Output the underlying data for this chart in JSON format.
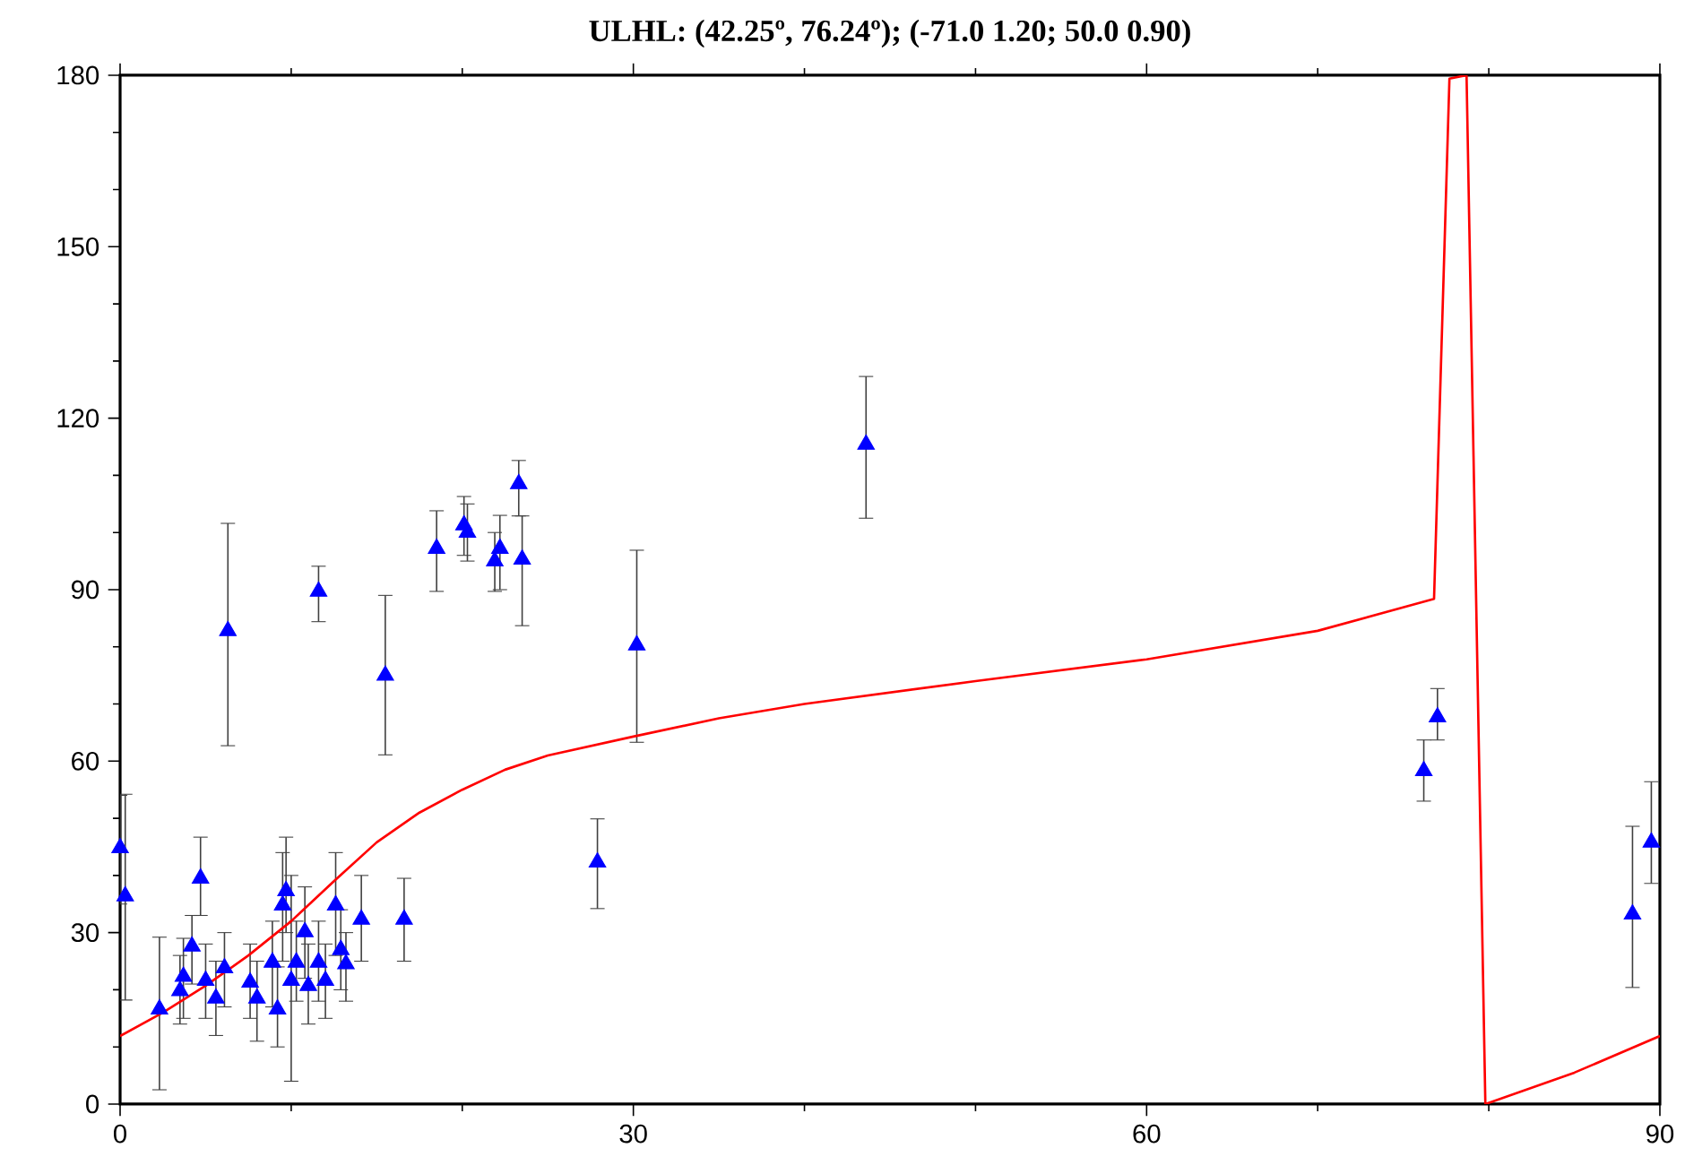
{
  "chart_data": {
    "type": "scatter",
    "title": "**ULHL: (42.25º, 76.24º);  (-71.0 1.20; 50.0 0.90)**",
    "xlim": [
      0,
      90
    ],
    "ylim": [
      0,
      180
    ],
    "xticks": [
      0,
      30,
      60,
      90
    ],
    "yticks": [
      0,
      30,
      60,
      90,
      120,
      150,
      180
    ],
    "grid": false,
    "marker": "triangle",
    "series": [
      {
        "type": "scatter",
        "color": "#0000ff",
        "x": [
          0,
          0.3,
          2.3,
          3.5,
          3.7,
          4.2,
          4.7,
          5,
          5.6,
          6.1,
          6.3,
          7.6,
          8,
          8.9,
          9.2,
          9.5,
          9.7,
          10,
          10.3,
          10.8,
          11,
          11.6,
          11.6,
          12,
          12.6,
          12.9,
          13.2,
          14.1,
          15.5,
          16.6,
          18.5,
          20.1,
          20.3,
          21.9,
          22.2,
          23.3,
          23.5,
          27.9,
          30.2,
          43.6,
          76.2,
          77,
          88.4,
          89.5
        ],
        "values": [
          44.8,
          36.4,
          16.6,
          19.8,
          22.3,
          27.6,
          39.5,
          21.6,
          18.5,
          23.8,
          82.8,
          21.3,
          18.5,
          24.8,
          16.6,
          34.8,
          37.3,
          21.6,
          24.8,
          30.1,
          20.7,
          89.7,
          24.8,
          21.6,
          34.8,
          27,
          24.5,
          32.3,
          75,
          32.3,
          97.2,
          101.3,
          100,
          95,
          97.2,
          108.5,
          95.3,
          42.3,
          80.3,
          115.4,
          58.3,
          67.7,
          33.2,
          45.8
        ],
        "errors": [
          [
            35,
            54
          ],
          [
            18.2,
            54.2
          ],
          [
            2.5,
            29.2
          ],
          [
            14,
            26
          ],
          [
            15,
            29
          ],
          [
            21,
            33
          ],
          [
            33,
            46.7
          ],
          [
            15,
            28
          ],
          [
            12,
            25
          ],
          [
            17,
            30
          ],
          [
            62.7,
            101.6
          ],
          [
            15,
            28
          ],
          [
            11,
            25
          ],
          [
            17,
            32
          ],
          [
            10,
            24
          ],
          [
            25,
            44
          ],
          [
            30,
            46.7
          ],
          [
            4,
            40
          ],
          [
            18,
            32
          ],
          [
            22,
            38
          ],
          [
            14,
            28
          ],
          [
            84.4,
            94.1
          ],
          [
            18,
            32
          ],
          [
            15,
            28
          ],
          [
            26,
            44
          ],
          [
            20,
            34
          ],
          [
            18,
            30
          ],
          [
            25,
            40
          ],
          [
            61.1,
            89
          ],
          [
            25,
            39.5
          ],
          [
            89.7,
            103.8
          ],
          [
            96,
            106.3
          ],
          [
            95,
            105
          ],
          [
            89.7,
            100
          ],
          [
            90,
            103
          ],
          [
            102.9,
            112.6
          ],
          [
            83.7,
            102.9
          ],
          [
            34.2,
            49.9
          ],
          [
            63.3,
            96.9
          ],
          [
            102.5,
            127.3
          ],
          [
            53,
            63.7
          ],
          [
            63.7,
            72.7
          ],
          [
            20.4,
            48.6
          ],
          [
            38.6,
            56.4
          ]
        ]
      },
      {
        "type": "line",
        "color": "#ff0000",
        "marker": "none",
        "line_style": "solid",
        "x": [
          0,
          2.5,
          5,
          7.5,
          10,
          12.5,
          15,
          17.5,
          20,
          22.5,
          25,
          30,
          35,
          40,
          50,
          60,
          70,
          76.8,
          77.7,
          78.7,
          79.8,
          85,
          90
        ],
        "values": [
          11.9,
          16,
          20.7,
          26,
          32,
          39,
          45.8,
          51,
          55,
          58.5,
          61,
          64.3,
          67.5,
          70,
          74,
          77.8,
          82.8,
          88.4,
          179.4,
          180,
          0,
          5.5,
          11.9
        ]
      }
    ]
  }
}
